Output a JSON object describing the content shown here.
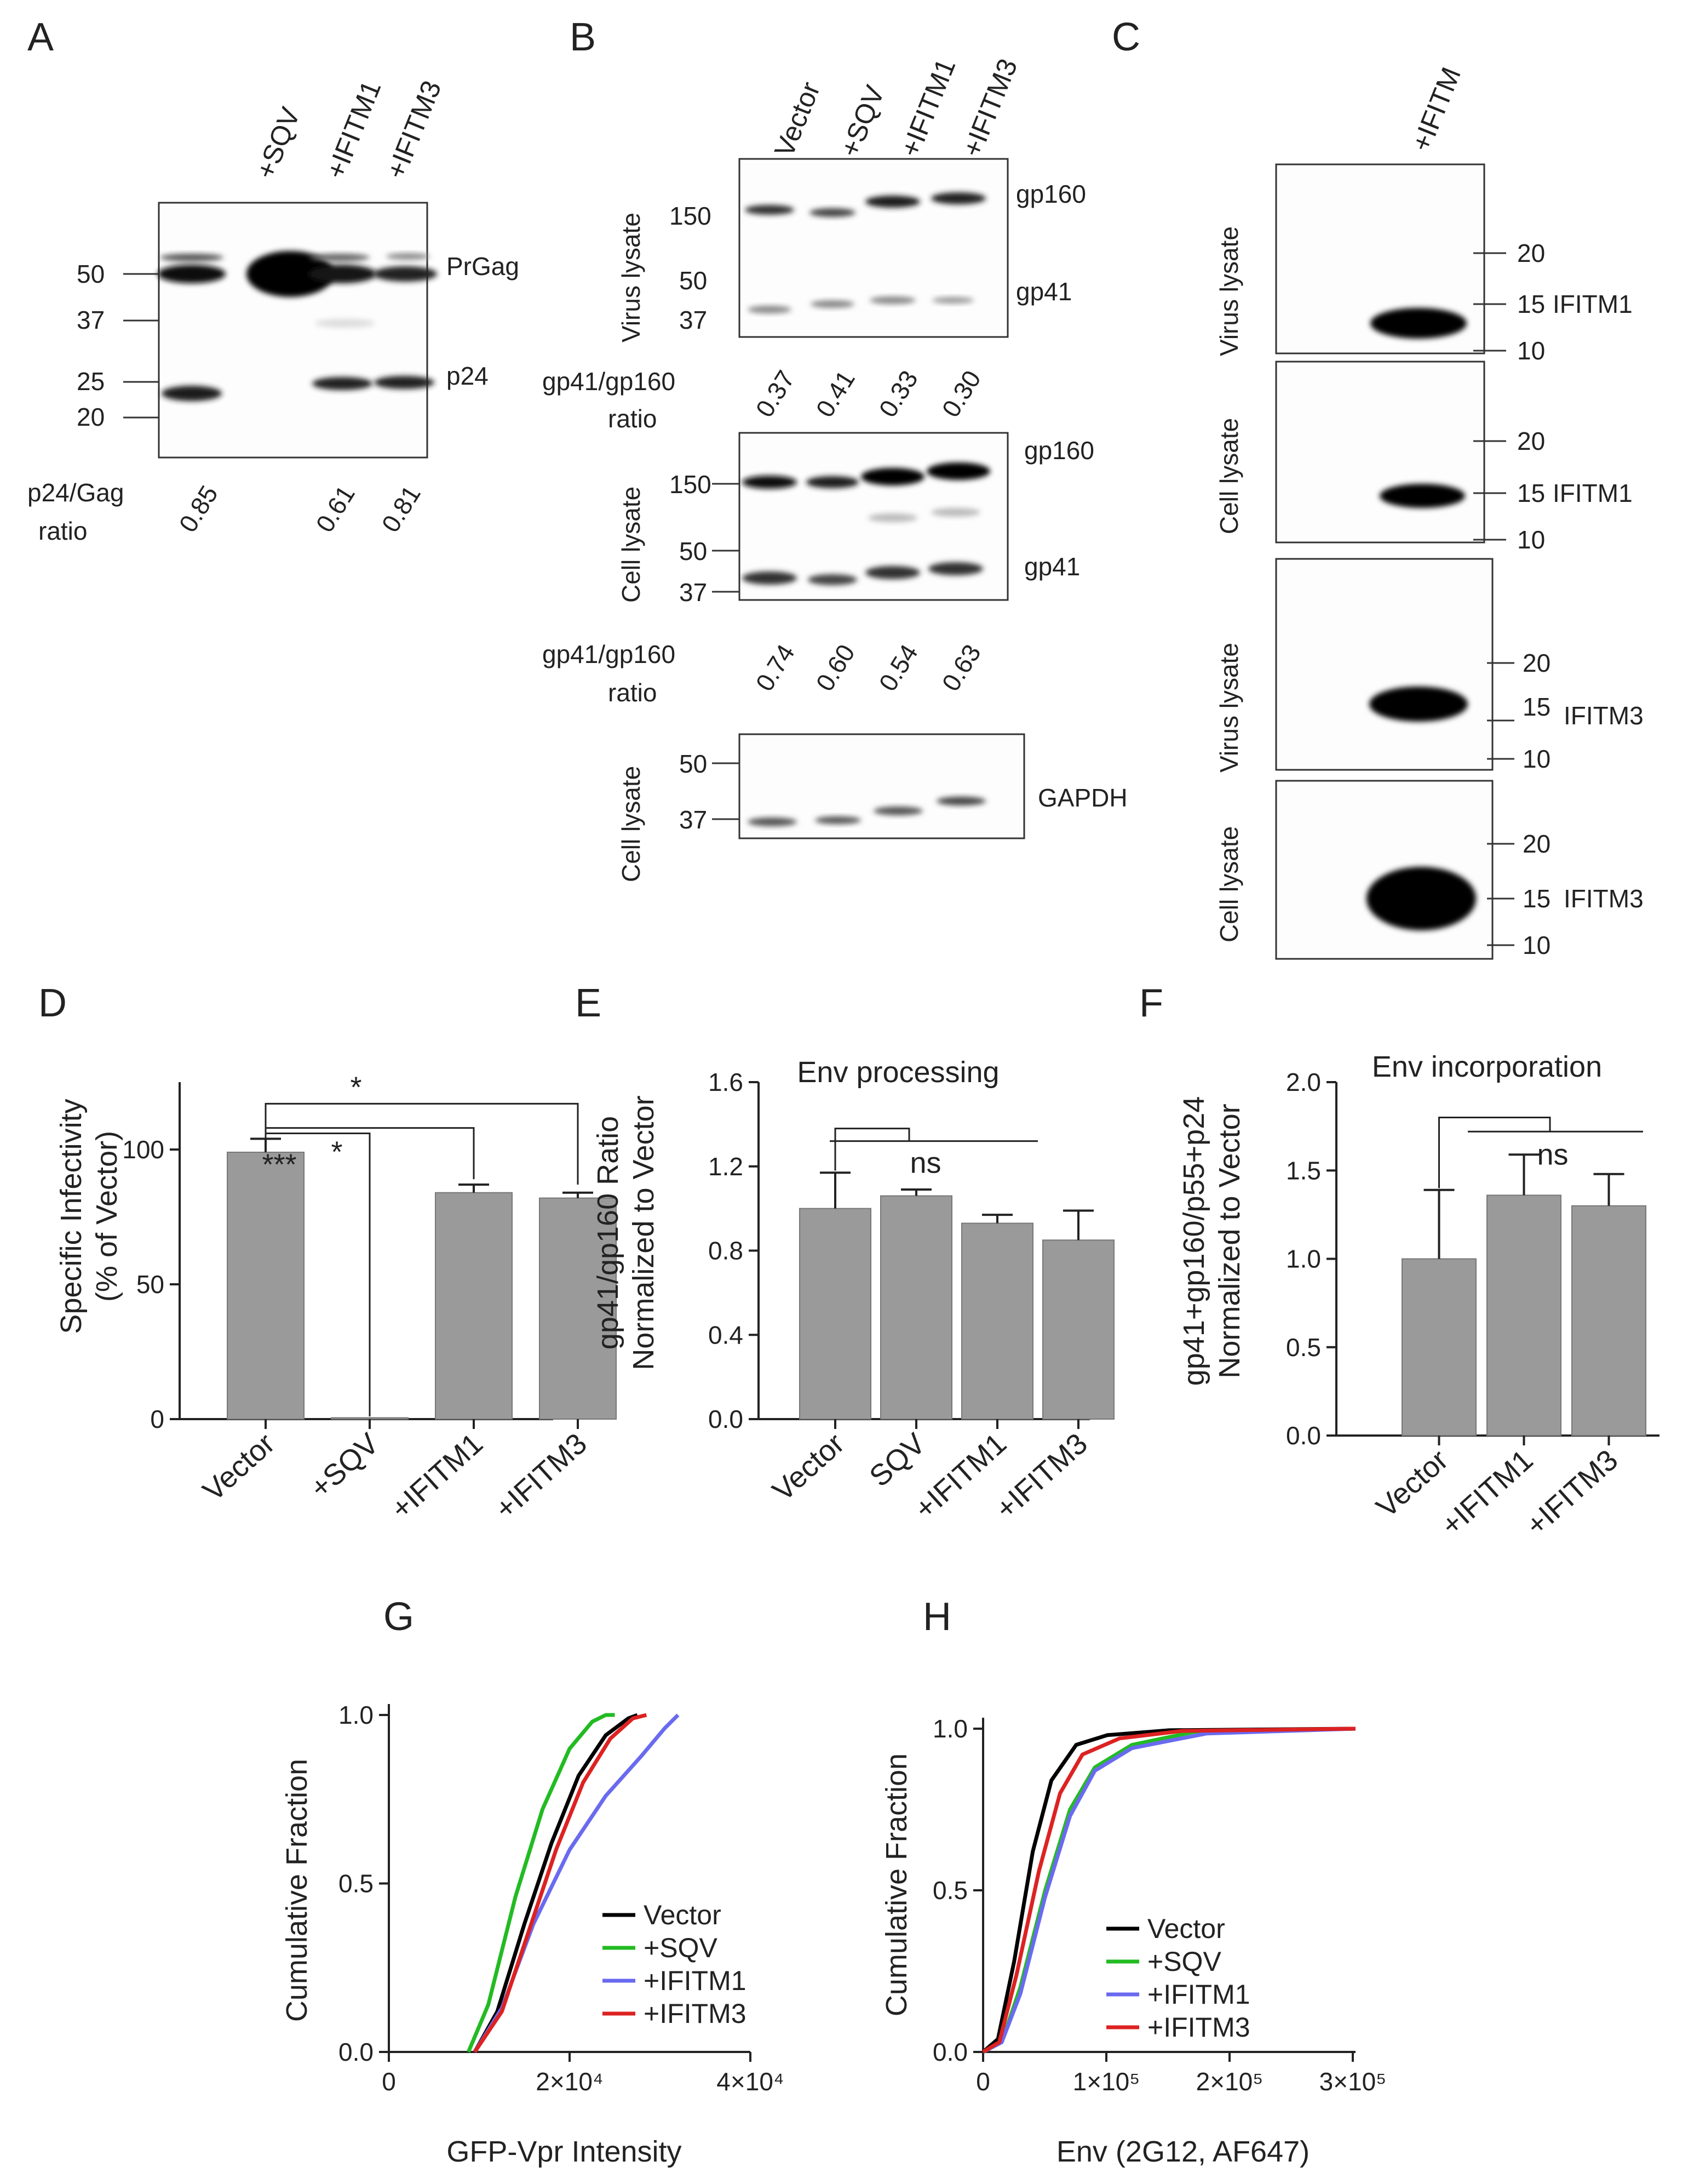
{
  "panels": {
    "A": {
      "letter": "A",
      "lanes": [
        "",
        "+SQV",
        "+IFITM1",
        "+IFITM3"
      ],
      "mw": [
        "50",
        "37",
        "25",
        "20"
      ],
      "bands": [
        "PrGag",
        "p24"
      ],
      "ratio_label": [
        "p24/Gag",
        "ratio"
      ],
      "ratios": [
        "0.85",
        "",
        "0.61",
        "0.81"
      ]
    },
    "B": {
      "letter": "B",
      "lanes": [
        "Vector",
        "+SQV",
        "+IFITM1",
        "+IFITM3"
      ],
      "blot1": {
        "side": "Virus lysate",
        "mw": [
          "150",
          "50",
          "37"
        ],
        "bands": [
          "gp160",
          "gp41"
        ]
      },
      "ratio_label": [
        "gp41/gp160",
        "ratio"
      ],
      "ratios1": [
        "0.37",
        "0.41",
        "0.33",
        "0.30"
      ],
      "blot2": {
        "side": "Cell lysate",
        "mw": [
          "150",
          "50",
          "37"
        ],
        "bands": [
          "gp160",
          "gp41"
        ]
      },
      "ratios2": [
        "0.74",
        "0.60",
        "0.54",
        "0.63"
      ],
      "blot3": {
        "side": "Cell lysate",
        "mw": [
          "50",
          "37"
        ],
        "bands": [
          "GAPDH"
        ]
      }
    },
    "C": {
      "letter": "C",
      "lane": "+IFITM",
      "blots": [
        {
          "side": "Virus lysate",
          "mw": [
            "20",
            "15",
            "10"
          ],
          "band": "IFITM1"
        },
        {
          "side": "Cell lysate",
          "mw": [
            "20",
            "15",
            "10"
          ],
          "band": "IFITM1"
        },
        {
          "side": "Virus lysate",
          "mw": [
            "20",
            "15",
            "10"
          ],
          "band": "IFITM3"
        },
        {
          "side": "Cell lysate",
          "mw": [
            "20",
            "15",
            "10"
          ],
          "band": "IFITM3"
        }
      ]
    },
    "D": {
      "letter": "D"
    },
    "E": {
      "letter": "E"
    },
    "F": {
      "letter": "F"
    },
    "G": {
      "letter": "G"
    },
    "H": {
      "letter": "H"
    }
  },
  "chart_data": [
    {
      "id": "D",
      "type": "bar",
      "categories": [
        "Vector",
        "+SQV",
        "+IFITM1",
        "+IFITM3"
      ],
      "values": [
        99,
        0.5,
        84,
        82
      ],
      "errors": [
        5,
        0,
        3,
        2
      ],
      "ylabel": [
        "Specific Infectivity",
        "(% of Vector)"
      ],
      "ylim": [
        0,
        125
      ],
      "yticks": [
        "0",
        "50",
        "100"
      ],
      "significance": [
        "***",
        "*",
        "*"
      ]
    },
    {
      "id": "E",
      "type": "bar",
      "categories": [
        "Vector",
        "SQV",
        "+IFITM1",
        "+IFITM3"
      ],
      "values": [
        1.0,
        1.06,
        0.93,
        0.85
      ],
      "errors": [
        0.17,
        0.03,
        0.04,
        0.14
      ],
      "title": "Env processing",
      "ylabel": [
        "gp41/gp160 Ratio",
        "Normalized to Vector"
      ],
      "ylim": [
        0,
        1.6
      ],
      "yticks": [
        "0.0",
        "0.4",
        "0.8",
        "1.2",
        "1.6"
      ],
      "significance": [
        "ns"
      ]
    },
    {
      "id": "F",
      "type": "bar",
      "categories": [
        "Vector",
        "+IFITM1",
        "+IFITM3"
      ],
      "values": [
        1.0,
        1.36,
        1.3
      ],
      "errors": [
        0.39,
        0.23,
        0.18
      ],
      "title": "Env incorporation",
      "ylabel": [
        "gp41+gp160/p55+p24",
        "Normalized to Vector"
      ],
      "ylim": [
        0,
        2.0
      ],
      "yticks": [
        "0.0",
        "0.5",
        "1.0",
        "1.5",
        "2.0"
      ],
      "significance": [
        "ns"
      ]
    },
    {
      "id": "G",
      "type": "line",
      "xlabel": "GFP-Vpr Intensity",
      "ylabel": "Cumulative Fraction",
      "xlim": [
        0,
        40000
      ],
      "ylim": [
        0,
        1.0
      ],
      "xticks": [
        "0",
        "2×10⁴",
        "4×10⁴"
      ],
      "yticks": [
        "0.0",
        "0.5",
        "1.0"
      ],
      "series": [
        {
          "name": "Vector",
          "color": "#000000",
          "x": [
            9500,
            12000,
            15000,
            18000,
            21000,
            24000,
            26500,
            27500
          ],
          "y": [
            0,
            0.12,
            0.38,
            0.62,
            0.82,
            0.94,
            0.99,
            1.0
          ]
        },
        {
          "name": "+SQV",
          "color": "#22bb22",
          "x": [
            8800,
            11000,
            14000,
            17000,
            20000,
            22500,
            24000,
            25000
          ],
          "y": [
            0,
            0.14,
            0.46,
            0.72,
            0.9,
            0.98,
            1.0,
            1.0
          ]
        },
        {
          "name": "+IFITM1",
          "color": "#6a6af0",
          "x": [
            9500,
            12500,
            16000,
            20000,
            24000,
            28000,
            30500,
            32000
          ],
          "y": [
            0,
            0.13,
            0.38,
            0.6,
            0.76,
            0.88,
            0.96,
            1.0
          ]
        },
        {
          "name": "+IFITM3",
          "color": "#dd2222",
          "x": [
            9500,
            12500,
            15500,
            18500,
            21500,
            24500,
            27000,
            28500
          ],
          "y": [
            0,
            0.12,
            0.36,
            0.6,
            0.8,
            0.93,
            0.99,
            1.0
          ]
        }
      ]
    },
    {
      "id": "H",
      "type": "line",
      "xlabel": "Env (2G12, AF647)",
      "ylabel": "Cumulative Fraction",
      "xlim": [
        0,
        300000
      ],
      "ylim": [
        0,
        1.0
      ],
      "xticks": [
        "0",
        "1×10⁵",
        "2×10⁵",
        "3×10⁵"
      ],
      "yticks": [
        "0.0",
        "0.5",
        "1.0"
      ],
      "series": [
        {
          "name": "Vector",
          "color": "#000000",
          "x": [
            0,
            12000,
            25000,
            40000,
            55000,
            75000,
            100000,
            150000,
            300000
          ],
          "y": [
            0,
            0.04,
            0.28,
            0.62,
            0.84,
            0.95,
            0.98,
            0.995,
            1.0
          ]
        },
        {
          "name": "+SQV",
          "color": "#22bb22",
          "x": [
            0,
            15000,
            30000,
            50000,
            70000,
            90000,
            120000,
            170000,
            300000
          ],
          "y": [
            0,
            0.03,
            0.2,
            0.5,
            0.75,
            0.88,
            0.95,
            0.99,
            1.0
          ]
        },
        {
          "name": "+IFITM1",
          "color": "#6a6af0",
          "x": [
            0,
            15000,
            30000,
            50000,
            70000,
            90000,
            120000,
            180000,
            300000
          ],
          "y": [
            0,
            0.03,
            0.18,
            0.48,
            0.73,
            0.87,
            0.94,
            0.985,
            1.0
          ]
        },
        {
          "name": "+IFITM3",
          "color": "#dd2222",
          "x": [
            0,
            13000,
            27000,
            45000,
            62000,
            80000,
            110000,
            160000,
            300000
          ],
          "y": [
            0,
            0.03,
            0.24,
            0.56,
            0.8,
            0.92,
            0.97,
            0.993,
            1.0
          ]
        }
      ]
    }
  ]
}
